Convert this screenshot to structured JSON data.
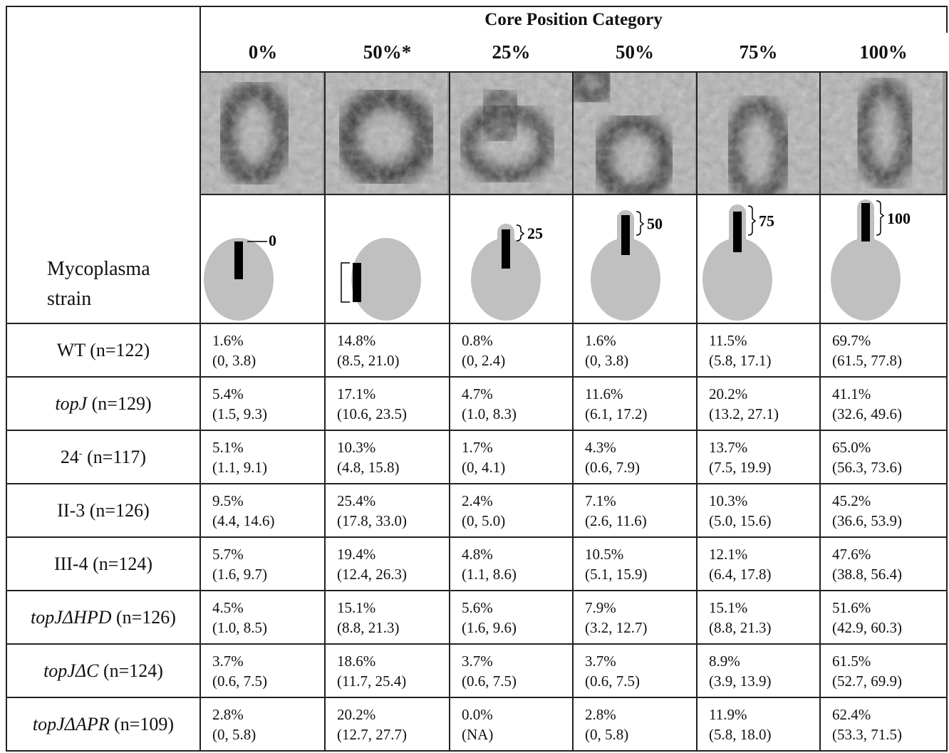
{
  "header": {
    "title": "Core Position Category",
    "row_label": "Mycoplasma strain"
  },
  "columns": [
    {
      "label": "0%",
      "diagram_label": "0"
    },
    {
      "label": "50%*"
    },
    {
      "label": "25%",
      "diagram_label": "25"
    },
    {
      "label": "50%",
      "diagram_label": "50"
    },
    {
      "label": "75%",
      "diagram_label": "75"
    },
    {
      "label": "100%",
      "diagram_label": "100"
    }
  ],
  "rows": [
    {
      "strain": {
        "name": "WT",
        "count": "(n=122)",
        "italic": false
      },
      "cells": [
        {
          "percent": "1.6%",
          "ci": "(0, 3.8)"
        },
        {
          "percent": "14.8%",
          "ci": "(8.5, 21.0)"
        },
        {
          "percent": "0.8%",
          "ci": "(0, 2.4)"
        },
        {
          "percent": "1.6%",
          "ci": "(0, 3.8)"
        },
        {
          "percent": "11.5%",
          "ci": "(5.8, 17.1)"
        },
        {
          "percent": "69.7%",
          "ci": "(61.5, 77.8)"
        }
      ]
    },
    {
      "strain": {
        "name": "topJ",
        "count": "(n=129)",
        "italic": true
      },
      "cells": [
        {
          "percent": "5.4%",
          "ci": "(1.5, 9.3)"
        },
        {
          "percent": "17.1%",
          "ci": "(10.6, 23.5)"
        },
        {
          "percent": "4.7%",
          "ci": "(1.0, 8.3)"
        },
        {
          "percent": "11.6%",
          "ci": "(6.1, 17.2)"
        },
        {
          "percent": "20.2%",
          "ci": "(13.2, 27.1)"
        },
        {
          "percent": "41.1%",
          "ci": "(32.6, 49.6)"
        }
      ]
    },
    {
      "strain": {
        "name": "24",
        "superscript": "-",
        "count": "(n=117)",
        "italic": false
      },
      "cells": [
        {
          "percent": "5.1%",
          "ci": "(1.1, 9.1)"
        },
        {
          "percent": "10.3%",
          "ci": "(4.8, 15.8)"
        },
        {
          "percent": "1.7%",
          "ci": "(0, 4.1)"
        },
        {
          "percent": "4.3%",
          "ci": "(0.6, 7.9)"
        },
        {
          "percent": "13.7%",
          "ci": "(7.5, 19.9)"
        },
        {
          "percent": "65.0%",
          "ci": "(56.3, 73.6)"
        }
      ]
    },
    {
      "strain": {
        "name": "II-3",
        "count": "(n=126)",
        "italic": false
      },
      "cells": [
        {
          "percent": "9.5%",
          "ci": "(4.4, 14.6)"
        },
        {
          "percent": "25.4%",
          "ci": "(17.8, 33.0)"
        },
        {
          "percent": "2.4%",
          "ci": "(0, 5.0)"
        },
        {
          "percent": "7.1%",
          "ci": "(2.6, 11.6)"
        },
        {
          "percent": "10.3%",
          "ci": "(5.0, 15.6)"
        },
        {
          "percent": "45.2%",
          "ci": "(36.6, 53.9)"
        }
      ]
    },
    {
      "strain": {
        "name": "III-4",
        "count": "(n=124)",
        "italic": false
      },
      "cells": [
        {
          "percent": "5.7%",
          "ci": "(1.6, 9.7)"
        },
        {
          "percent": "19.4%",
          "ci": "(12.4, 26.3)"
        },
        {
          "percent": "4.8%",
          "ci": "(1.1, 8.6)"
        },
        {
          "percent": "10.5%",
          "ci": "(5.1, 15.9)"
        },
        {
          "percent": "12.1%",
          "ci": "(6.4, 17.8)"
        },
        {
          "percent": "47.6%",
          "ci": "(38.8, 56.4)"
        }
      ]
    },
    {
      "strain": {
        "name": "topJΔHPD",
        "count": "(n=126)",
        "italic": true
      },
      "cells": [
        {
          "percent": "4.5%",
          "ci": "(1.0, 8.5)"
        },
        {
          "percent": "15.1%",
          "ci": "(8.8, 21.3)"
        },
        {
          "percent": "5.6%",
          "ci": "(1.6, 9.6)"
        },
        {
          "percent": "7.9%",
          "ci": "(3.2, 12.7)"
        },
        {
          "percent": "15.1%",
          "ci": "(8.8, 21.3)"
        },
        {
          "percent": "51.6%",
          "ci": "(42.9, 60.3)"
        }
      ]
    },
    {
      "strain": {
        "name": "topJΔC",
        "count": "(n=124)",
        "italic": true
      },
      "cells": [
        {
          "percent": "3.7%",
          "ci": "(0.6, 7.5)"
        },
        {
          "percent": "18.6%",
          "ci": "(11.7, 25.4)"
        },
        {
          "percent": "3.7%",
          "ci": "(0.6, 7.5)"
        },
        {
          "percent": "3.7%",
          "ci": "(0.6, 7.5)"
        },
        {
          "percent": "8.9%",
          "ci": "(3.9, 13.9)"
        },
        {
          "percent": "61.5%",
          "ci": "(52.7, 69.9)"
        }
      ]
    },
    {
      "strain": {
        "name": "topJΔAPR",
        "count": "(n=109)",
        "italic": true
      },
      "cells": [
        {
          "percent": "2.8%",
          "ci": "(0, 5.8)"
        },
        {
          "percent": "20.2%",
          "ci": "(12.7, 27.7)"
        },
        {
          "percent": "0.0%",
          "ci": "(NA)"
        },
        {
          "percent": "2.8%",
          "ci": "(0, 5.8)"
        },
        {
          "percent": "11.9%",
          "ci": "(5.8, 18.0)"
        },
        {
          "percent": "62.4%",
          "ci": "(53.3, 71.5)"
        }
      ]
    }
  ]
}
